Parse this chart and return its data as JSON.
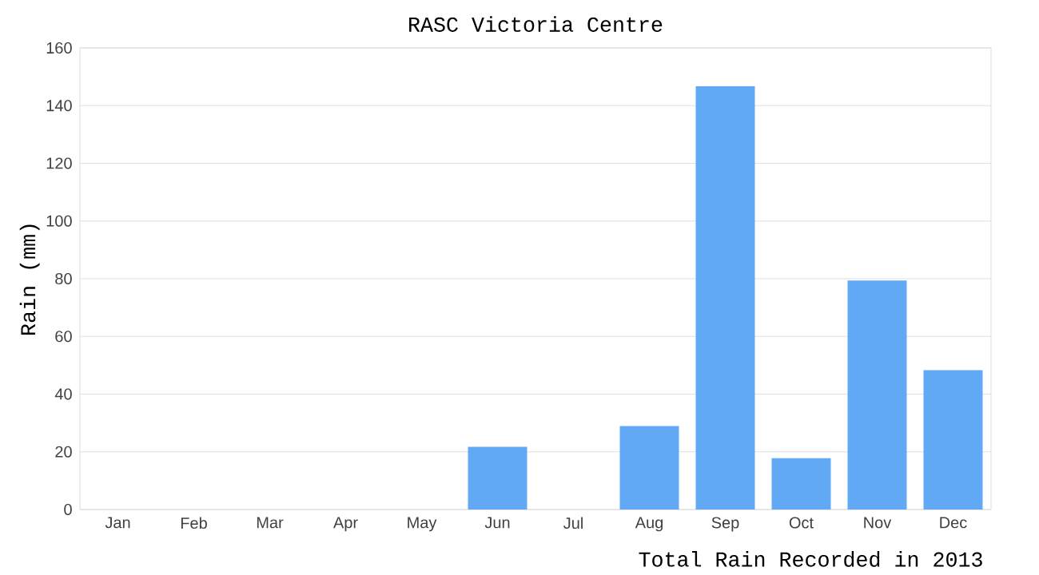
{
  "chart_data": {
    "type": "bar",
    "title": "RASC Victoria Centre",
    "xlabel": "Total Rain Recorded in 2013",
    "ylabel": "Rain (mm)",
    "categories": [
      "Jan",
      "Feb",
      "Mar",
      "Apr",
      "May",
      "Jun",
      "Jul",
      "Aug",
      "Sep",
      "Oct",
      "Nov",
      "Dec"
    ],
    "values": [
      0,
      0,
      0,
      0,
      0,
      21.7,
      0,
      28.9,
      146.7,
      17.8,
      79.4,
      48.3
    ],
    "color": "#61a9f5",
    "ylim": [
      0,
      160
    ],
    "yticks": [
      0,
      20,
      40,
      60,
      80,
      100,
      120,
      140,
      160
    ],
    "grid": "y"
  }
}
